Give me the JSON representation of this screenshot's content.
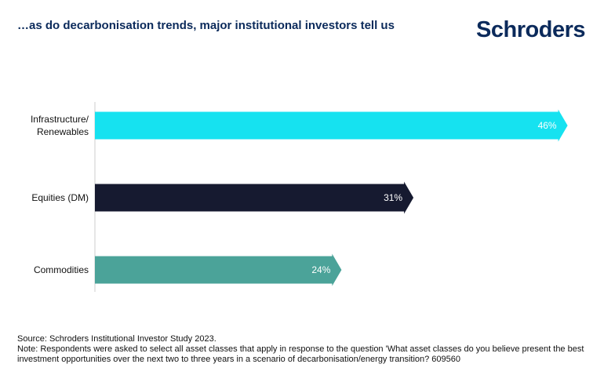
{
  "header": {
    "title": "…as do decarbonisation trends, major institutional investors tell us",
    "logo_text": "Schroders"
  },
  "colors": {
    "brand": "#0b2a5b",
    "bar_infrastructure": "#16e2f0",
    "bar_equities": "#161a30",
    "bar_commodities": "#4ba399"
  },
  "chart_data": {
    "type": "bar",
    "orientation": "horizontal",
    "categories": [
      "Infrastructure/\nRenewables",
      "Equities (DM)",
      "Commodities"
    ],
    "values": [
      46,
      31,
      24
    ],
    "value_labels": [
      "46%",
      "31%",
      "24%"
    ],
    "unit": "%",
    "xlim": [
      0,
      50
    ],
    "grid": false,
    "legend": "none"
  },
  "footer": {
    "source": "Source: Schroders Institutional Investor Study 2023.",
    "note": "Note: Respondents were asked to select all asset classes that apply in response to the question 'What asset classes do you believe present the best investment opportunities over the next two to three years in a scenario of decarbonisation/energy transition?  609560"
  }
}
